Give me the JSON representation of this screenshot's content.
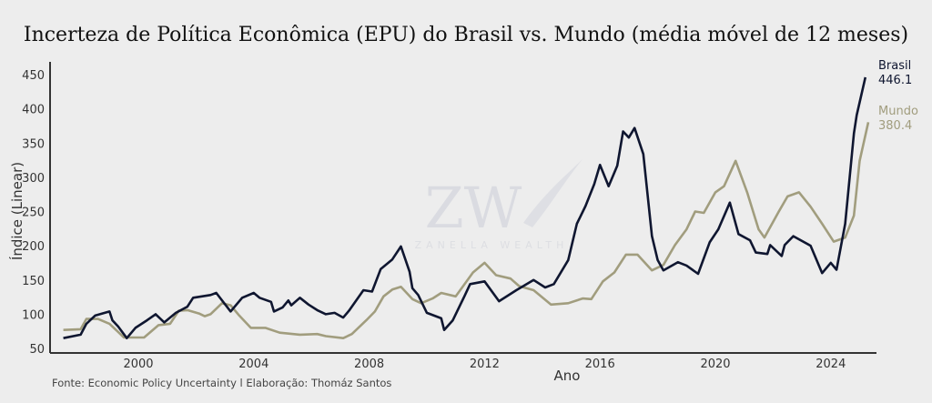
{
  "chart_data": {
    "type": "line",
    "title": "Incerteza de Política Econômica (EPU) do Brasil vs. Mundo (média móvel de 12 meses)",
    "xlabel": "Ano",
    "ylabel": "Índice (Linear)",
    "xticks": [
      "2000",
      "2004",
      "2008",
      "2012",
      "2016",
      "2020",
      "2024"
    ],
    "yticks": [
      "50",
      "100",
      "150",
      "200",
      "250",
      "300",
      "350",
      "400",
      "450"
    ],
    "ylim": [
      50,
      450
    ],
    "xlim": [
      1997.3,
      2025.3
    ],
    "grid": false,
    "legend": "end-of-line labels, right",
    "source": "Fonte: Economic Policy Uncertainty l Elaboração: Thomáz Santos",
    "series": [
      {
        "name": "Brasil",
        "end_label": "446.1",
        "color": "#0f1630",
        "x": [
          1997.4,
          1998.0,
          1998.2,
          1998.5,
          1999.0,
          1999.1,
          1999.3,
          1999.6,
          1999.9,
          2000.3,
          2000.6,
          2000.9,
          2001.3,
          2001.7,
          2001.9,
          2002.5,
          2002.7,
          2003.2,
          2003.6,
          2004.0,
          2004.2,
          2004.6,
          2004.7,
          2005.0,
          2005.2,
          2005.3,
          2005.6,
          2005.9,
          2006.2,
          2006.5,
          2006.8,
          2007.1,
          2007.3,
          2007.8,
          2008.1,
          2008.4,
          2008.8,
          2009.1,
          2009.4,
          2009.5,
          2009.7,
          2010.0,
          2010.5,
          2010.6,
          2010.9,
          2011.3,
          2011.5,
          2012.0,
          2012.5,
          2013.1,
          2013.7,
          2014.1,
          2014.4,
          2014.9,
          2015.2,
          2015.5,
          2015.8,
          2016.0,
          2016.3,
          2016.6,
          2016.8,
          2017.0,
          2017.2,
          2017.5,
          2017.8,
          2018.0,
          2018.2,
          2018.7,
          2019.0,
          2019.4,
          2019.8,
          2020.1,
          2020.5,
          2020.8,
          2021.2,
          2021.4,
          2021.8,
          2021.9,
          2022.3,
          2022.4,
          2022.7,
          2023.3,
          2023.7,
          2024.0,
          2024.2,
          2024.5,
          2024.8,
          2024.9,
          2025.2
        ],
        "y": [
          65,
          70,
          86,
          98,
          104,
          91,
          82,
          65,
          80,
          91,
          100,
          88,
          102,
          111,
          124,
          128,
          131,
          104,
          124,
          131,
          124,
          118,
          104,
          110,
          120,
          113,
          124,
          114,
          106,
          100,
          102,
          95,
          105,
          135,
          133,
          166,
          180,
          199,
          162,
          138,
          128,
          102,
          94,
          77,
          91,
          126,
          144,
          148,
          119,
          135,
          150,
          139,
          144,
          179,
          232,
          258,
          290,
          318,
          287,
          317,
          367,
          358,
          372,
          334,
          214,
          179,
          164,
          176,
          171,
          159,
          205,
          224,
          263,
          217,
          208,
          190,
          188,
          201,
          185,
          201,
          214,
          200,
          160,
          175,
          165,
          232,
          364,
          391,
          446.1
        ]
      },
      {
        "name": "Mundo",
        "end_label": "380.4",
        "color": "#a19d7e",
        "x": [
          1997.4,
          1998.0,
          1998.2,
          1998.6,
          1999.0,
          1999.5,
          2000.2,
          2000.7,
          2001.1,
          2001.4,
          2001.7,
          2002.1,
          2002.3,
          2002.5,
          2002.9,
          2003.2,
          2003.5,
          2003.9,
          2004.4,
          2004.9,
          2005.6,
          2006.2,
          2006.5,
          2007.1,
          2007.4,
          2007.9,
          2008.2,
          2008.5,
          2008.8,
          2009.1,
          2009.5,
          2009.8,
          2010.2,
          2010.5,
          2011.0,
          2011.6,
          2012.0,
          2012.4,
          2012.9,
          2013.2,
          2013.7,
          2014.3,
          2014.9,
          2015.4,
          2015.7,
          2016.1,
          2016.5,
          2016.9,
          2017.3,
          2017.8,
          2018.2,
          2018.6,
          2019.0,
          2019.3,
          2019.6,
          2020.0,
          2020.3,
          2020.7,
          2021.1,
          2021.5,
          2021.7,
          2022.2,
          2022.5,
          2022.9,
          2023.3,
          2023.7,
          2024.1,
          2024.5,
          2024.8,
          2025.0,
          2025.3
        ],
        "y": [
          77,
          78,
          93,
          93,
          86,
          66,
          66,
          84,
          86,
          105,
          106,
          101,
          97,
          100,
          116,
          113,
          98,
          80,
          80,
          73,
          70,
          71,
          68,
          65,
          71,
          91,
          104,
          126,
          136,
          140,
          122,
          116,
          123,
          131,
          126,
          161,
          175,
          157,
          152,
          141,
          135,
          114,
          116,
          123,
          122,
          148,
          161,
          187,
          187,
          164,
          172,
          201,
          224,
          250,
          248,
          278,
          287,
          324,
          278,
          224,
          212,
          250,
          272,
          278,
          257,
          232,
          206,
          212,
          244,
          324,
          380.4
        ]
      }
    ]
  },
  "watermark": {
    "monogram": "ZW",
    "text": "ZANELLA WEALTH"
  }
}
